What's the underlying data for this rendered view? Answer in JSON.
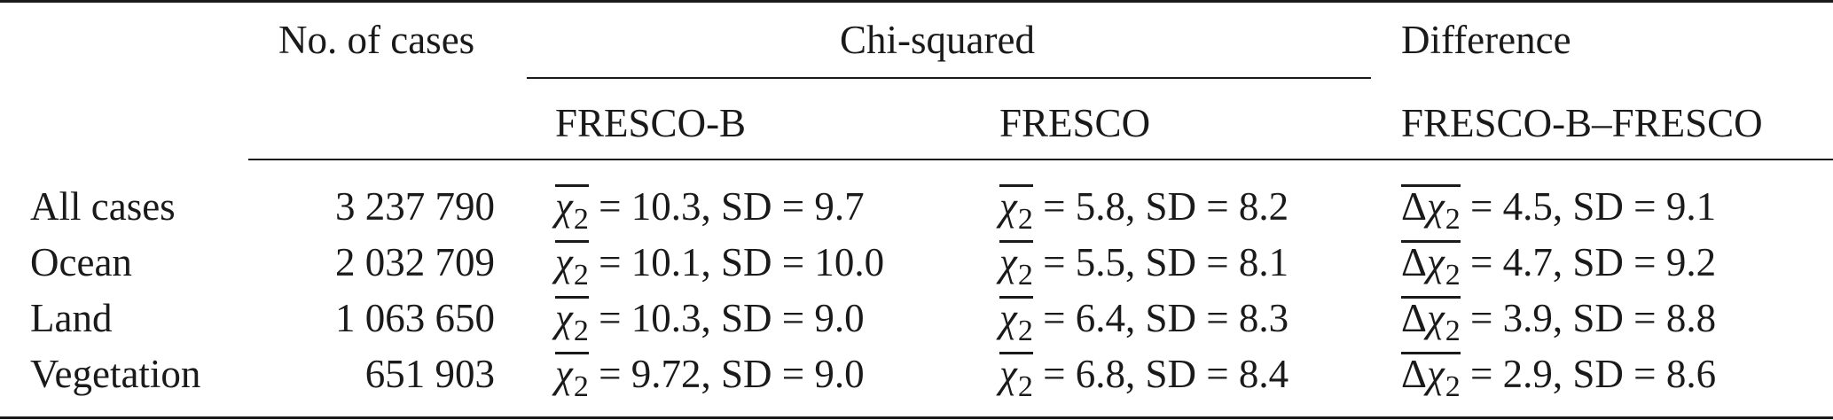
{
  "table": {
    "headers": {
      "cases": "No. of cases",
      "chi_group": "Chi-squared",
      "diff_group": "Difference",
      "fresco_b": "FRESCO-B",
      "fresco": "FRESCO",
      "diff_sub": "FRESCO-B–FRESCO"
    },
    "symbols": {
      "chi": "χ",
      "chi_sub": "2",
      "delta": "Δ",
      "eq": " = ",
      "sd_prefix": ", SD = "
    },
    "rows": [
      {
        "label": "All cases",
        "cases": "3 237 790",
        "fb_mean": "10.3",
        "fb_sd": "9.7",
        "f_mean": "5.8",
        "f_sd": "8.2",
        "d_mean": "4.5",
        "d_sd": "9.1"
      },
      {
        "label": "Ocean",
        "cases": "2 032 709",
        "fb_mean": "10.1",
        "fb_sd": "10.0",
        "f_mean": "5.5",
        "f_sd": "8.1",
        "d_mean": "4.7",
        "d_sd": "9.2"
      },
      {
        "label": "Land",
        "cases": "1 063 650",
        "fb_mean": "10.3",
        "fb_sd": "9.0",
        "f_mean": "6.4",
        "f_sd": "8.3",
        "d_mean": "3.9",
        "d_sd": "8.8"
      },
      {
        "label": "Vegetation",
        "cases": "651 903",
        "fb_mean": "9.72",
        "fb_sd": "9.0",
        "f_mean": "6.8",
        "f_sd": "8.4",
        "d_mean": "2.9",
        "d_sd": "8.6"
      }
    ]
  }
}
